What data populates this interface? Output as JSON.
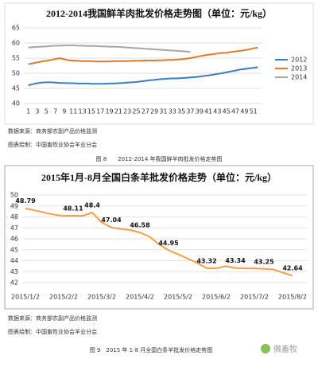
{
  "chart_data": [
    {
      "type": "line",
      "title": "2012-2014我国鲜羊肉批发价格走势图（单位：元/kg）",
      "x": [
        1,
        2,
        3,
        4,
        5,
        6,
        7,
        8,
        9,
        10,
        11,
        12,
        13,
        14,
        15,
        16,
        17,
        18,
        19,
        20,
        21,
        22,
        23,
        24,
        25,
        26,
        27,
        28,
        29,
        30,
        31,
        32,
        33,
        34,
        35,
        36,
        37,
        38,
        39,
        40,
        41,
        42,
        43,
        44,
        45,
        46,
        47,
        48,
        49,
        50,
        51,
        52
      ],
      "xlim": [
        0,
        53
      ],
      "xticks": [
        1,
        3,
        5,
        7,
        9,
        11,
        13,
        15,
        17,
        19,
        21,
        23,
        25,
        27,
        29,
        31,
        33,
        35,
        37,
        39,
        41,
        43,
        45,
        47,
        49,
        51
      ],
      "ylim": [
        40,
        65
      ],
      "yticks": [
        40,
        45,
        50,
        55,
        60,
        65
      ],
      "grid": true,
      "legend": "right",
      "series": [
        {
          "name": "2012",
          "color": "#3b7dc4",
          "values": [
            46.0,
            46.4,
            46.7,
            46.9,
            47.0,
            47.0,
            46.9,
            46.8,
            46.8,
            46.7,
            46.7,
            46.6,
            46.6,
            46.6,
            46.5,
            46.5,
            46.5,
            46.5,
            46.6,
            46.6,
            46.7,
            46.8,
            46.9,
            47.0,
            47.1,
            47.3,
            47.5,
            47.7,
            47.8,
            48.0,
            48.1,
            48.2,
            48.3,
            48.3,
            48.4,
            48.5,
            48.6,
            48.7,
            48.9,
            49.1,
            49.3,
            49.5,
            49.8,
            50.0,
            50.3,
            50.6,
            50.9,
            51.2,
            51.4,
            51.6,
            51.8,
            52.0
          ]
        },
        {
          "name": "2013",
          "color": "#e07b2a",
          "values": [
            53.0,
            53.3,
            53.6,
            53.9,
            54.1,
            54.4,
            54.7,
            55.0,
            54.6,
            54.3,
            54.2,
            54.1,
            54.0,
            54.0,
            54.0,
            53.9,
            53.9,
            53.9,
            53.9,
            54.0,
            54.0,
            54.0,
            54.0,
            54.1,
            54.1,
            54.1,
            54.2,
            54.2,
            54.2,
            54.3,
            54.3,
            54.4,
            54.4,
            54.5,
            54.6,
            54.8,
            55.0,
            55.3,
            55.6,
            55.9,
            56.1,
            56.3,
            56.5,
            56.7,
            56.8,
            57.0,
            57.2,
            57.4,
            57.6,
            57.9,
            58.2,
            58.5
          ]
        },
        {
          "name": "2014",
          "color": "#a6a6a6",
          "values": [
            58.5,
            58.6,
            58.7,
            58.8,
            58.9,
            59.0,
            59.1,
            59.1,
            59.2,
            59.2,
            59.2,
            59.1,
            59.1,
            59.0,
            59.0,
            59.0,
            58.9,
            58.9,
            58.8,
            58.8,
            58.7,
            58.6,
            58.5,
            58.4,
            58.3,
            58.2,
            58.1,
            58.0,
            57.9,
            57.8,
            57.7,
            57.6,
            57.5,
            57.4,
            57.3,
            57.2,
            57.0,
            null,
            null,
            null,
            null,
            null,
            null,
            null,
            null,
            null,
            null,
            null,
            null,
            null,
            null,
            null
          ]
        }
      ]
    },
    {
      "type": "line",
      "title": "2015年1月-8月全国白条羊批发价格走势（单位：元/kg）",
      "categories": [
        "2015/1/2",
        null,
        null,
        null,
        "2015/2/2",
        null,
        null,
        null,
        "2015/3/2",
        null,
        null,
        null,
        "2015/4/2",
        null,
        null,
        null,
        "2015/5/2",
        null,
        null,
        null,
        "2015/6/2",
        null,
        null,
        null,
        "2015/7/2",
        null,
        null,
        null,
        "2015/8/2"
      ],
      "ylim": [
        42,
        50
      ],
      "yticks": [
        42,
        43,
        44,
        45,
        46,
        47,
        48,
        49,
        50
      ],
      "grid": true,
      "color": "#f0a04b",
      "values": [
        48.79,
        48.6,
        48.4,
        48.2,
        48.1,
        48.11,
        48.1,
        48.4,
        47.5,
        47.04,
        46.9,
        46.8,
        46.58,
        46.2,
        45.5,
        44.95,
        44.6,
        44.2,
        43.8,
        43.32,
        43.3,
        43.5,
        43.34,
        43.3,
        43.3,
        43.25,
        43.2,
        42.9,
        42.64
      ],
      "value_labels": [
        "48.79",
        null,
        null,
        null,
        null,
        "48.11",
        null,
        "48.4",
        null,
        "47.04",
        null,
        null,
        "46.58",
        null,
        null,
        "44.95",
        null,
        null,
        null,
        "43.32",
        null,
        null,
        "43.34",
        null,
        null,
        "43.25",
        null,
        null,
        "42.64"
      ]
    }
  ],
  "document": {
    "source1": "数据来源：商务部农副产品价格监测",
    "author1": "图表绘制：中国畜牧业协会羊业分会",
    "caption1": "图 8　　2012-2014 年我国鲜羊肉批发价格走势图",
    "source2": "数据来源：商务部农副产品价格监测",
    "author2": "图表绘制：中国畜牧业协会羊业分会",
    "caption2": "图 9　2015 年 1-8 月全国白条羊批发价格走势图",
    "watermark": "微畜牧"
  }
}
